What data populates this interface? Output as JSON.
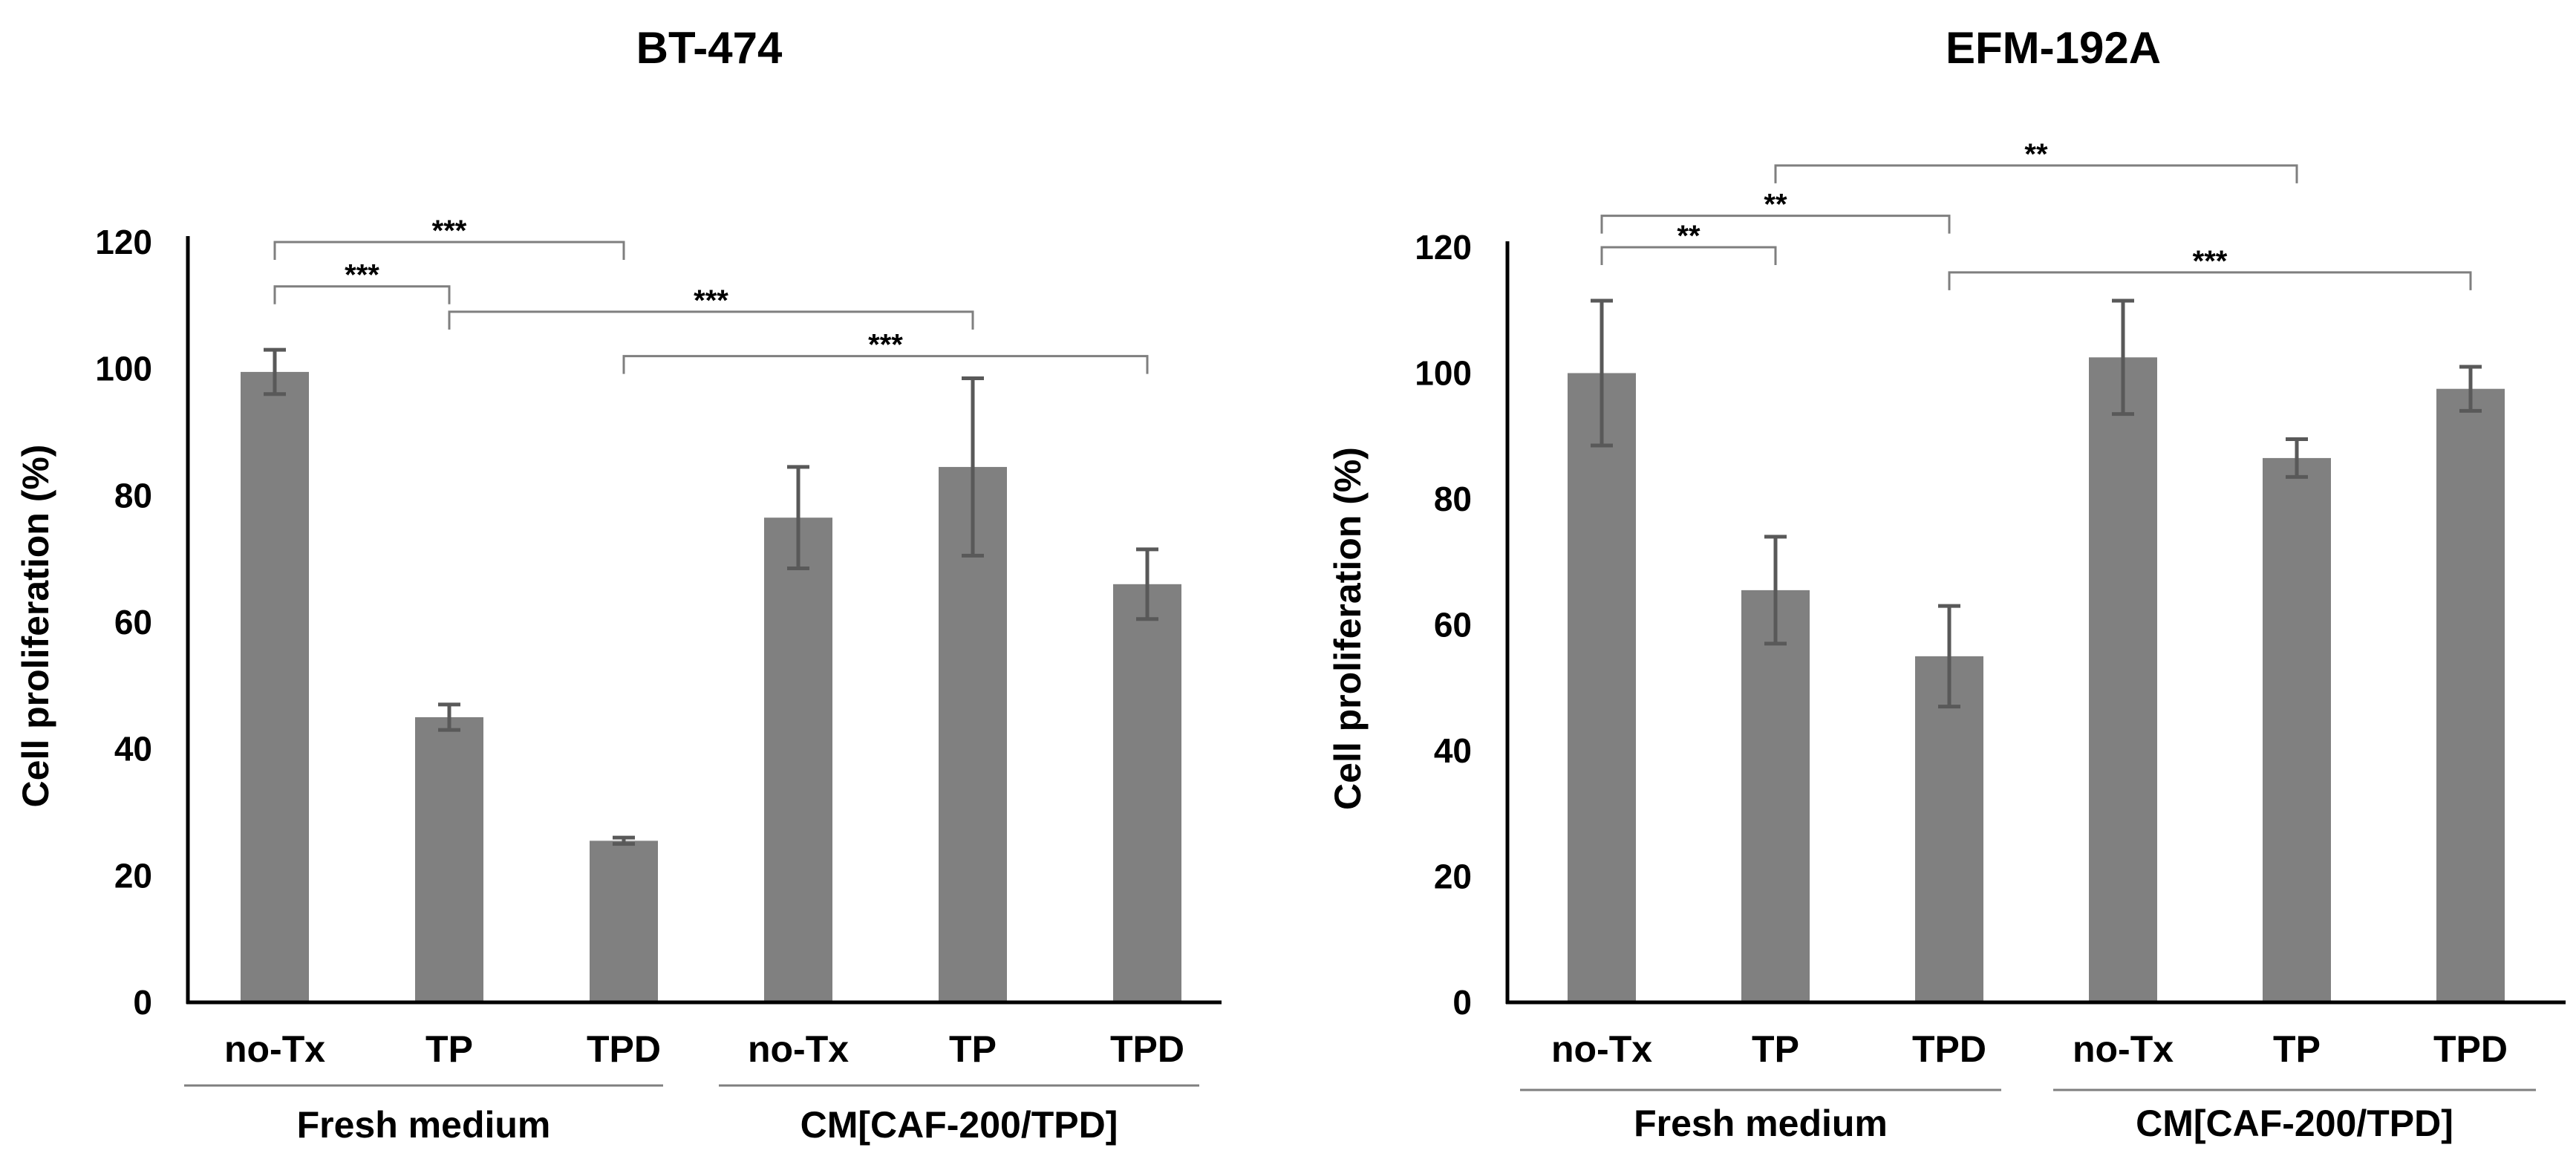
{
  "chart_data": [
    {
      "type": "bar",
      "title": "BT-474",
      "ylabel": "Cell proliferation (%)",
      "xlabel": "",
      "ylim": [
        0,
        120
      ],
      "yticks": [
        "0",
        "20",
        "40",
        "60",
        "80",
        "100",
        "120"
      ],
      "categories": [
        "no-Tx",
        "TP",
        "TPD",
        "no-Tx",
        "TP",
        "TPD"
      ],
      "groups": [
        {
          "label": "Fresh medium",
          "from": 0,
          "to": 2
        },
        {
          "label": "CM[CAF-200/TPD]",
          "from": 3,
          "to": 5
        }
      ],
      "values": [
        99.5,
        45,
        25.5,
        76.5,
        84.5,
        66
      ],
      "errors": [
        3.5,
        2,
        0.5,
        8,
        14,
        5.5
      ],
      "color": "#808080",
      "significance": [
        {
          "from": 0,
          "to": 2,
          "label": "***",
          "y": 120
        },
        {
          "from": 0,
          "to": 1,
          "label": "***",
          "y": 113
        },
        {
          "from": 1,
          "to": 4,
          "label": "***",
          "y": 109
        },
        {
          "from": 2,
          "to": 5,
          "label": "***",
          "y": 102
        }
      ]
    },
    {
      "type": "bar",
      "title": "EFM-192A",
      "ylabel": "Cell proliferation (%)",
      "xlabel": "",
      "ylim": [
        0,
        120
      ],
      "yticks": [
        "0",
        "20",
        "40",
        "60",
        "80",
        "100",
        "120"
      ],
      "categories": [
        "no-Tx",
        "TP",
        "TPD",
        "no-Tx",
        "TP",
        "TPD"
      ],
      "groups": [
        {
          "label": "Fresh medium",
          "from": 0,
          "to": 2
        },
        {
          "label": "CM[CAF-200/TPD]",
          "from": 3,
          "to": 5
        }
      ],
      "values": [
        100,
        65.5,
        55,
        102.5,
        86.5,
        97.5
      ],
      "errors": [
        11.5,
        8.5,
        8,
        9,
        3,
        3.5
      ],
      "color": "#808080",
      "significance": [
        {
          "from": 1,
          "to": 4,
          "label": "**",
          "y": 133
        },
        {
          "from": 0,
          "to": 2,
          "label": "**",
          "y": 125
        },
        {
          "from": 0,
          "to": 1,
          "label": "**",
          "y": 120
        },
        {
          "from": 2,
          "to": 5,
          "label": "***",
          "y": 116
        }
      ]
    }
  ]
}
